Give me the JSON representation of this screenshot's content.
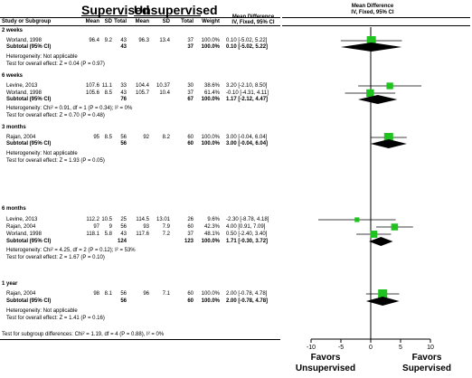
{
  "header": {
    "group1": "Supervised",
    "group2": "Unsupervised",
    "study_col": "Study or Subgroup",
    "mean1": "Mean",
    "sd1": "SD",
    "total1": "Total",
    "mean2": "Mean",
    "sd2": "SD",
    "total2": "Total",
    "weight": "Weight",
    "md_title": "Mean Difference",
    "md_sub": "IV, Fixed, 95% CI",
    "plot_title": "Mean Difference",
    "plot_sub": "IV, Fixed, 95% CI"
  },
  "subgroups": [
    {
      "title": "2 weeks",
      "studies": [
        {
          "name": "Worland, 1998",
          "mean1": "96.4",
          "sd1": "9.2",
          "n1": "43",
          "mean2": "96.3",
          "sd2": "13.4",
          "n2": "37",
          "weight": "100.0%",
          "ci": "0.10 [-5.02, 5.22]"
        }
      ],
      "subtotal": {
        "label": "Subtotal (95% CI)",
        "n1": "43",
        "n2": "37",
        "weight": "100.0%",
        "ci": "0.10 [-5.02, 5.22]"
      },
      "het": "Heterogeneity: Not applicable",
      "test": "Test for overall effect: Z = 0.04 (P = 0.97)"
    },
    {
      "title": "6 weeks",
      "studies": [
        {
          "name": "Levine, 2013",
          "mean1": "107.6",
          "sd1": "11.1",
          "n1": "33",
          "mean2": "104.4",
          "sd2": "10.37",
          "n2": "30",
          "weight": "38.6%",
          "ci": "3.20 [-2.10, 8.50]"
        },
        {
          "name": "Worland, 1998",
          "mean1": "105.6",
          "sd1": "8.5",
          "n1": "43",
          "mean2": "105.7",
          "sd2": "10.4",
          "n2": "37",
          "weight": "61.4%",
          "ci": "-0.10 [-4.31, 4.11]"
        }
      ],
      "subtotal": {
        "label": "Subtotal (95% CI)",
        "n1": "76",
        "n2": "67",
        "weight": "100.0%",
        "ci": "1.17 [-2.12, 4.47]"
      },
      "het": "Heterogeneity: Chi² = 0.91, df = 1 (P = 0.34); I² = 0%",
      "test": "Test for overall effect: Z = 0.70 (P = 0.48)"
    },
    {
      "title": "3 months",
      "studies": [
        {
          "name": "Rajan, 2004",
          "mean1": "95",
          "sd1": "8.5",
          "n1": "56",
          "mean2": "92",
          "sd2": "8.2",
          "n2": "60",
          "weight": "100.0%",
          "ci": "3.00 [-0.04, 6.04]"
        }
      ],
      "subtotal": {
        "label": "Subtotal (95% CI)",
        "n1": "56",
        "n2": "60",
        "weight": "100.0%",
        "ci": "3.00 [-0.04, 6.04]"
      },
      "het": "Heterogeneity: Not applicable",
      "test": "Test for overall effect: Z = 1.93 (P = 0.05)"
    },
    {
      "title": "6 months",
      "studies": [
        {
          "name": "Levine, 2013",
          "mean1": "112.2",
          "sd1": "10.5",
          "n1": "25",
          "mean2": "114.5",
          "sd2": "13.01",
          "n2": "26",
          "weight": "9.6%",
          "ci": "-2.30 [-8.78, 4.18]"
        },
        {
          "name": "Rajan, 2004",
          "mean1": "97",
          "sd1": "9",
          "n1": "56",
          "mean2": "93",
          "sd2": "7.9",
          "n2": "60",
          "weight": "42.3%",
          "ci": "4.00 [0.91, 7.09]"
        },
        {
          "name": "Worland, 1998",
          "mean1": "118.1",
          "sd1": "5.8",
          "n1": "43",
          "mean2": "117.6",
          "sd2": "7.2",
          "n2": "37",
          "weight": "48.1%",
          "ci": "0.50 [-2.40, 3.40]"
        }
      ],
      "subtotal": {
        "label": "Subtotal (95% CI)",
        "n1": "124",
        "n2": "123",
        "weight": "100.0%",
        "ci": "1.71 [-0.30, 3.72]"
      },
      "het": "Heterogeneity: Chi² = 4.25, df = 2 (P = 0.12); I² = 53%",
      "test": "Test for overall effect: Z = 1.67 (P = 0.10)"
    },
    {
      "title": "1 year",
      "studies": [
        {
          "name": "Rajan, 2004",
          "mean1": "98",
          "sd1": "8.1",
          "n1": "56",
          "mean2": "96",
          "sd2": "7.1",
          "n2": "60",
          "weight": "100.0%",
          "ci": "2.00 [-0.78, 4.78]"
        }
      ],
      "subtotal": {
        "label": "Subtotal (95% CI)",
        "n1": "56",
        "n2": "60",
        "weight": "100.0%",
        "ci": "2.00 [-0.78, 4.78]"
      },
      "het": "Heterogeneity: Not applicable",
      "test": "Test for overall effect: Z = 1.41 (P = 0.16)"
    }
  ],
  "footer": {
    "test_subgroup": "Test for subgroup differences: Chi² = 1.19, df = 4 (P = 0.88), I² = 0%"
  },
  "favors": {
    "left": [
      "Favors",
      "Unsupervised"
    ],
    "right": [
      "Favors",
      "Supervised"
    ]
  },
  "chart_data": {
    "type": "forest",
    "xlim": [
      -10,
      10
    ],
    "xticks": [
      -10,
      -5,
      0,
      5,
      10
    ],
    "reference_line": 0,
    "colors": {
      "study_marker": "#1fc21f",
      "diamond": "#000000",
      "lines": "#000000"
    },
    "studies": [
      {
        "subgroup": "2 weeks",
        "name": "Worland, 1998",
        "md": 0.1,
        "lo": -5.02,
        "hi": 5.22,
        "weight": 100.0
      },
      {
        "subgroup": "6 weeks",
        "name": "Levine, 2013",
        "md": 3.2,
        "lo": -2.1,
        "hi": 8.5,
        "weight": 38.6
      },
      {
        "subgroup": "6 weeks",
        "name": "Worland, 1998",
        "md": -0.1,
        "lo": -4.31,
        "hi": 4.11,
        "weight": 61.4
      },
      {
        "subgroup": "3 months",
        "name": "Rajan, 2004",
        "md": 3.0,
        "lo": -0.04,
        "hi": 6.04,
        "weight": 100.0
      },
      {
        "subgroup": "6 months",
        "name": "Levine, 2013",
        "md": -2.3,
        "lo": -8.78,
        "hi": 4.18,
        "weight": 9.6
      },
      {
        "subgroup": "6 months",
        "name": "Rajan, 2004",
        "md": 4.0,
        "lo": 0.91,
        "hi": 7.09,
        "weight": 42.3
      },
      {
        "subgroup": "6 months",
        "name": "Worland, 1998",
        "md": 0.5,
        "lo": -2.4,
        "hi": 3.4,
        "weight": 48.1
      },
      {
        "subgroup": "1 year",
        "name": "Rajan, 2004",
        "md": 2.0,
        "lo": -0.78,
        "hi": 4.78,
        "weight": 100.0
      }
    ],
    "subtotals": [
      {
        "subgroup": "2 weeks",
        "md": 0.1,
        "lo": -5.02,
        "hi": 5.22
      },
      {
        "subgroup": "6 weeks",
        "md": 1.17,
        "lo": -2.12,
        "hi": 4.47
      },
      {
        "subgroup": "3 months",
        "md": 3.0,
        "lo": -0.04,
        "hi": 6.04
      },
      {
        "subgroup": "6 months",
        "md": 1.71,
        "lo": -0.3,
        "hi": 3.72
      },
      {
        "subgroup": "1 year",
        "md": 2.0,
        "lo": -0.78,
        "hi": 4.78
      }
    ]
  }
}
